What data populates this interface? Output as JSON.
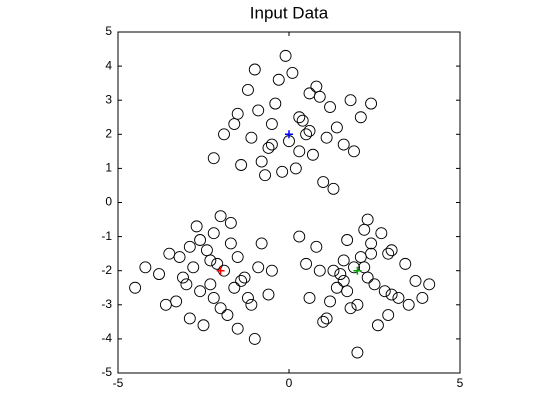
{
  "chart_data": {
    "type": "scatter",
    "title": "Input Data",
    "xlim": [
      -5,
      5
    ],
    "ylim": [
      -5,
      5
    ],
    "xticks": [
      -5,
      0,
      5
    ],
    "yticks": [
      -5,
      -4,
      -3,
      -2,
      -1,
      0,
      1,
      2,
      3,
      4,
      5
    ],
    "series": [
      {
        "color": "#000000",
        "marker": "circle",
        "x": [
          -0.5,
          0.3,
          1.2,
          -1.1,
          0.8,
          -0.2,
          0.6,
          -1.5,
          1.6,
          0.1,
          -0.8,
          1.0,
          -0.4,
          0.4,
          -1.9,
          2.1,
          -0.6,
          0.9,
          -1.2,
          0.2,
          1.4,
          -0.1,
          0.7,
          -0.9,
          1.8,
          -1.4,
          0.5,
          -0.3,
          1.1,
          -0.7,
          0.0,
          2.4,
          -2.2,
          0.3,
          -1.0,
          1.3,
          -0.5,
          0.6,
          1.9,
          -1.6,
          -2.3,
          -1.5,
          -2.8,
          -1.2,
          -3.1,
          -2.0,
          -1.7,
          -2.6,
          -0.9,
          -3.5,
          -2.2,
          -1.4,
          -2.9,
          -1.9,
          -0.6,
          -3.8,
          -2.4,
          -1.1,
          -2.7,
          -1.6,
          -3.3,
          -2.1,
          -0.8,
          -2.5,
          -4.2,
          -1.3,
          -2.0,
          -3.0,
          -1.8,
          -2.6,
          -0.5,
          -3.6,
          -2.3,
          -1.0,
          -2.9,
          -1.5,
          -4.5,
          -2.2,
          -1.7,
          -3.2,
          2.3,
          1.6,
          2.8,
          1.2,
          3.0,
          2.0,
          1.7,
          2.5,
          0.9,
          3.4,
          2.2,
          1.4,
          2.9,
          1.9,
          0.6,
          3.7,
          2.4,
          1.1,
          2.7,
          1.5,
          3.2,
          2.1,
          0.8,
          2.6,
          4.1,
          1.3,
          2.0,
          3.0,
          1.8,
          2.4,
          0.5,
          3.5,
          2.2,
          1.0,
          2.9,
          1.6,
          3.9,
          2.3,
          1.7,
          0.3
        ],
        "y": [
          2.3,
          1.5,
          2.8,
          1.9,
          3.4,
          0.9,
          2.1,
          2.6,
          1.7,
          3.8,
          1.2,
          0.6,
          2.9,
          2.4,
          2.0,
          2.5,
          1.6,
          3.1,
          3.3,
          1.0,
          2.2,
          4.3,
          1.4,
          2.7,
          3.0,
          1.1,
          2.0,
          3.6,
          1.9,
          0.8,
          1.8,
          2.9,
          1.3,
          2.5,
          3.9,
          0.4,
          1.7,
          3.2,
          1.5,
          2.3,
          -2.4,
          -1.6,
          -1.9,
          -2.8,
          -2.2,
          -3.1,
          -1.2,
          -2.6,
          -1.9,
          -1.5,
          -0.9,
          -2.3,
          -3.4,
          -2.0,
          -2.7,
          -2.1,
          -1.4,
          -3.0,
          -0.7,
          -2.5,
          -2.9,
          -1.8,
          -1.2,
          -3.6,
          -1.9,
          -2.2,
          -0.4,
          -2.4,
          -3.3,
          -1.1,
          -2.0,
          -3.0,
          -1.7,
          -4.0,
          -1.3,
          -3.7,
          -2.5,
          -2.8,
          -0.6,
          -1.6,
          -2.2,
          -1.7,
          -2.6,
          -2.9,
          -1.4,
          -3.0,
          -1.1,
          -2.4,
          -2.0,
          -1.8,
          -0.8,
          -2.5,
          -3.3,
          -1.9,
          -2.8,
          -2.3,
          -1.5,
          -3.4,
          -0.9,
          -2.1,
          -2.8,
          -1.6,
          -1.3,
          -3.6,
          -2.4,
          -2.0,
          -4.4,
          -2.7,
          -3.1,
          -1.2,
          -1.8,
          -3.0,
          -1.9,
          -3.5,
          -1.5,
          -2.3,
          -2.8,
          -0.5,
          -2.6,
          -1.0
        ]
      },
      {
        "color": "#ff0000",
        "marker": "plus",
        "x": [
          -2
        ],
        "y": [
          -2
        ]
      },
      {
        "color": "#0000ff",
        "marker": "plus",
        "x": [
          0
        ],
        "y": [
          2
        ]
      },
      {
        "color": "#00aa00",
        "marker": "plus",
        "x": [
          2
        ],
        "y": [
          -2
        ]
      }
    ]
  }
}
